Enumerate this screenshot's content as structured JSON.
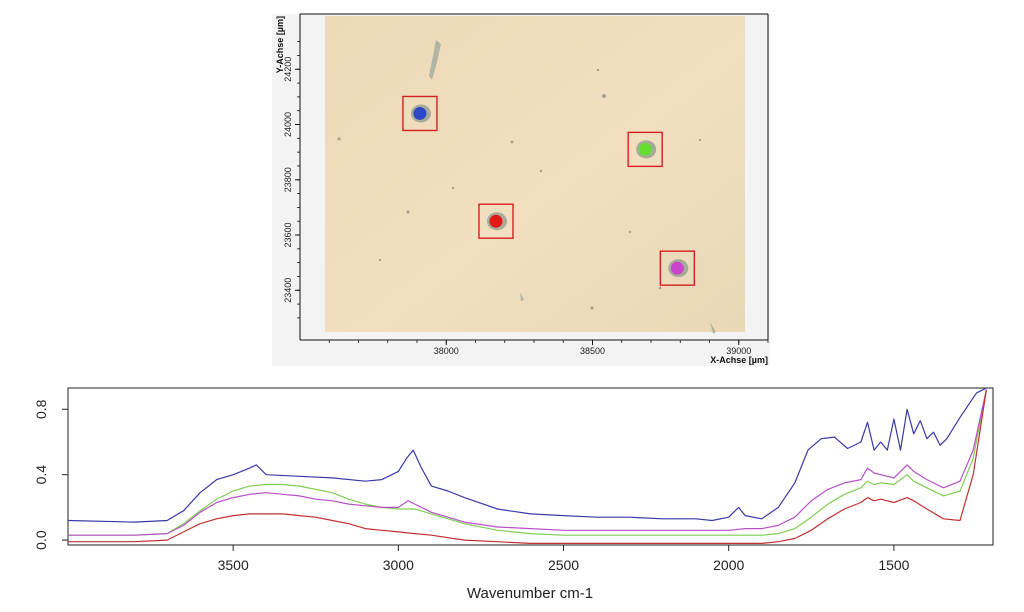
{
  "chart_data": [
    {
      "type": "scatter",
      "kind": "microscope-image",
      "x_axis_label": "X-Achse [µm]",
      "y_axis_label": "Y-Achse [µm]",
      "x_ticks": [
        "38000",
        "38500",
        "39000"
      ],
      "y_ticks": [
        "24200",
        "24000",
        "23800",
        "23600",
        "23400"
      ],
      "xlim": [
        37500,
        39100
      ],
      "ylim": [
        23220,
        24400
      ],
      "points": [
        {
          "name": "blue",
          "x": 37910,
          "y": 24040,
          "color": "#2c48c8"
        },
        {
          "name": "green",
          "x": 38680,
          "y": 23910,
          "color": "#66dd33"
        },
        {
          "name": "red",
          "x": 38170,
          "y": 23650,
          "color": "#e01818"
        },
        {
          "name": "magenta",
          "x": 38790,
          "y": 23480,
          "color": "#cc44cc"
        }
      ]
    },
    {
      "type": "line",
      "xlabel": "Wavenumber cm-1",
      "ylabel": "",
      "xlim": [
        4000,
        1200
      ],
      "ylim": [
        -0.03,
        0.93
      ],
      "x_ticks": [
        "3500",
        "3000",
        "2500",
        "2000",
        "1500"
      ],
      "y_ticks": [
        "0.0",
        "0.4",
        "0.8"
      ],
      "series": [
        {
          "name": "blue",
          "color": "#3a3aa6",
          "points": [
            [
              4000,
              0.12
            ],
            [
              3800,
              0.11
            ],
            [
              3700,
              0.12
            ],
            [
              3650,
              0.18
            ],
            [
              3600,
              0.29
            ],
            [
              3550,
              0.37
            ],
            [
              3500,
              0.4
            ],
            [
              3450,
              0.44
            ],
            [
              3430,
              0.46
            ],
            [
              3400,
              0.4
            ],
            [
              3300,
              0.39
            ],
            [
              3200,
              0.38
            ],
            [
              3100,
              0.36
            ],
            [
              3050,
              0.37
            ],
            [
              3000,
              0.42
            ],
            [
              2975,
              0.5
            ],
            [
              2955,
              0.55
            ],
            [
              2930,
              0.44
            ],
            [
              2900,
              0.33
            ],
            [
              2850,
              0.3
            ],
            [
              2800,
              0.26
            ],
            [
              2700,
              0.19
            ],
            [
              2600,
              0.16
            ],
            [
              2500,
              0.15
            ],
            [
              2400,
              0.14
            ],
            [
              2300,
              0.14
            ],
            [
              2200,
              0.13
            ],
            [
              2100,
              0.13
            ],
            [
              2050,
              0.12
            ],
            [
              2000,
              0.14
            ],
            [
              1970,
              0.2
            ],
            [
              1950,
              0.15
            ],
            [
              1900,
              0.13
            ],
            [
              1850,
              0.2
            ],
            [
              1800,
              0.35
            ],
            [
              1760,
              0.55
            ],
            [
              1720,
              0.62
            ],
            [
              1680,
              0.63
            ],
            [
              1640,
              0.56
            ],
            [
              1600,
              0.6
            ],
            [
              1580,
              0.72
            ],
            [
              1560,
              0.55
            ],
            [
              1540,
              0.6
            ],
            [
              1520,
              0.55
            ],
            [
              1500,
              0.74
            ],
            [
              1480,
              0.55
            ],
            [
              1460,
              0.8
            ],
            [
              1440,
              0.65
            ],
            [
              1420,
              0.73
            ],
            [
              1400,
              0.62
            ],
            [
              1380,
              0.66
            ],
            [
              1360,
              0.58
            ],
            [
              1340,
              0.62
            ],
            [
              1300,
              0.75
            ],
            [
              1250,
              0.9
            ],
            [
              1220,
              0.93
            ]
          ]
        },
        {
          "name": "green",
          "color": "#7fcf52",
          "points": [
            [
              4000,
              0.03
            ],
            [
              3800,
              0.03
            ],
            [
              3700,
              0.04
            ],
            [
              3650,
              0.1
            ],
            [
              3600,
              0.18
            ],
            [
              3550,
              0.25
            ],
            [
              3500,
              0.3
            ],
            [
              3450,
              0.33
            ],
            [
              3400,
              0.34
            ],
            [
              3350,
              0.34
            ],
            [
              3300,
              0.33
            ],
            [
              3250,
              0.31
            ],
            [
              3200,
              0.29
            ],
            [
              3150,
              0.25
            ],
            [
              3100,
              0.22
            ],
            [
              3050,
              0.2
            ],
            [
              3000,
              0.19
            ],
            [
              2950,
              0.19
            ],
            [
              2900,
              0.16
            ],
            [
              2800,
              0.1
            ],
            [
              2700,
              0.06
            ],
            [
              2600,
              0.04
            ],
            [
              2500,
              0.03
            ],
            [
              2400,
              0.03
            ],
            [
              2300,
              0.03
            ],
            [
              2200,
              0.03
            ],
            [
              2100,
              0.03
            ],
            [
              2000,
              0.03
            ],
            [
              1950,
              0.03
            ],
            [
              1900,
              0.03
            ],
            [
              1850,
              0.04
            ],
            [
              1800,
              0.07
            ],
            [
              1750,
              0.14
            ],
            [
              1700,
              0.22
            ],
            [
              1650,
              0.28
            ],
            [
              1600,
              0.32
            ],
            [
              1580,
              0.36
            ],
            [
              1560,
              0.34
            ],
            [
              1540,
              0.35
            ],
            [
              1500,
              0.34
            ],
            [
              1460,
              0.4
            ],
            [
              1440,
              0.36
            ],
            [
              1400,
              0.32
            ],
            [
              1350,
              0.27
            ],
            [
              1300,
              0.3
            ],
            [
              1260,
              0.5
            ],
            [
              1220,
              0.92
            ]
          ]
        },
        {
          "name": "magenta",
          "color": "#b84fc8",
          "points": [
            [
              4000,
              0.03
            ],
            [
              3800,
              0.03
            ],
            [
              3700,
              0.04
            ],
            [
              3650,
              0.09
            ],
            [
              3600,
              0.17
            ],
            [
              3550,
              0.23
            ],
            [
              3500,
              0.26
            ],
            [
              3450,
              0.28
            ],
            [
              3400,
              0.29
            ],
            [
              3350,
              0.28
            ],
            [
              3300,
              0.27
            ],
            [
              3250,
              0.25
            ],
            [
              3200,
              0.24
            ],
            [
              3150,
              0.22
            ],
            [
              3100,
              0.21
            ],
            [
              3050,
              0.2
            ],
            [
              3000,
              0.2
            ],
            [
              2970,
              0.24
            ],
            [
              2950,
              0.22
            ],
            [
              2900,
              0.17
            ],
            [
              2800,
              0.11
            ],
            [
              2700,
              0.08
            ],
            [
              2600,
              0.07
            ],
            [
              2500,
              0.06
            ],
            [
              2400,
              0.06
            ],
            [
              2300,
              0.06
            ],
            [
              2200,
              0.06
            ],
            [
              2100,
              0.06
            ],
            [
              2000,
              0.06
            ],
            [
              1950,
              0.07
            ],
            [
              1900,
              0.07
            ],
            [
              1850,
              0.09
            ],
            [
              1800,
              0.14
            ],
            [
              1750,
              0.24
            ],
            [
              1700,
              0.31
            ],
            [
              1650,
              0.35
            ],
            [
              1600,
              0.37
            ],
            [
              1580,
              0.44
            ],
            [
              1560,
              0.41
            ],
            [
              1540,
              0.4
            ],
            [
              1500,
              0.38
            ],
            [
              1460,
              0.46
            ],
            [
              1440,
              0.42
            ],
            [
              1400,
              0.37
            ],
            [
              1350,
              0.32
            ],
            [
              1300,
              0.36
            ],
            [
              1260,
              0.55
            ],
            [
              1220,
              0.92
            ]
          ]
        },
        {
          "name": "red",
          "color": "#c03030",
          "points": [
            [
              4000,
              -0.01
            ],
            [
              3800,
              -0.01
            ],
            [
              3700,
              0.0
            ],
            [
              3650,
              0.05
            ],
            [
              3600,
              0.1
            ],
            [
              3550,
              0.13
            ],
            [
              3500,
              0.15
            ],
            [
              3450,
              0.16
            ],
            [
              3400,
              0.16
            ],
            [
              3350,
              0.16
            ],
            [
              3300,
              0.15
            ],
            [
              3250,
              0.14
            ],
            [
              3200,
              0.12
            ],
            [
              3150,
              0.1
            ],
            [
              3100,
              0.07
            ],
            [
              3050,
              0.06
            ],
            [
              3000,
              0.05
            ],
            [
              2950,
              0.04
            ],
            [
              2900,
              0.03
            ],
            [
              2800,
              0.0
            ],
            [
              2700,
              -0.01
            ],
            [
              2600,
              -0.02
            ],
            [
              2500,
              -0.02
            ],
            [
              2400,
              -0.02
            ],
            [
              2300,
              -0.02
            ],
            [
              2200,
              -0.02
            ],
            [
              2100,
              -0.02
            ],
            [
              2000,
              -0.02
            ],
            [
              1950,
              -0.02
            ],
            [
              1900,
              -0.02
            ],
            [
              1850,
              -0.01
            ],
            [
              1800,
              0.01
            ],
            [
              1750,
              0.06
            ],
            [
              1700,
              0.13
            ],
            [
              1650,
              0.19
            ],
            [
              1600,
              0.23
            ],
            [
              1580,
              0.26
            ],
            [
              1560,
              0.24
            ],
            [
              1540,
              0.25
            ],
            [
              1500,
              0.23
            ],
            [
              1460,
              0.26
            ],
            [
              1440,
              0.24
            ],
            [
              1400,
              0.19
            ],
            [
              1350,
              0.13
            ],
            [
              1300,
              0.12
            ],
            [
              1260,
              0.4
            ],
            [
              1220,
              0.92
            ]
          ]
        }
      ]
    }
  ]
}
